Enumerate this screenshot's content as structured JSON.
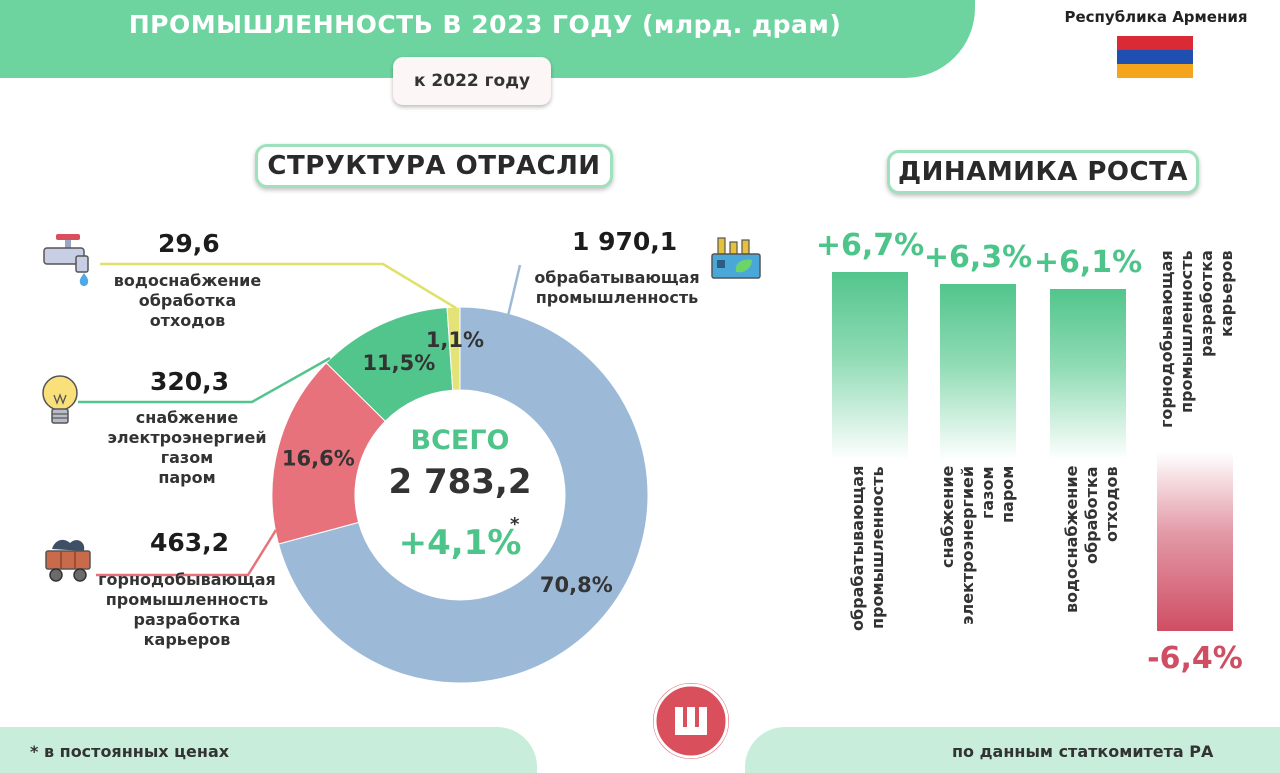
{
  "header": {
    "title": "ПРОМЫШЛЕННОСТЬ В 2023 ГОДУ (млрд. драм)",
    "subtitle": "к 2022 году",
    "country": "Республика Армения",
    "flag_colors": [
      "#d92a35",
      "#1f4fb0",
      "#f4a51c"
    ]
  },
  "structure": {
    "heading": "СТРУКТУРА ОТРАСЛИ",
    "center_label": "ВСЕГО",
    "total": "2 783,2",
    "total_growth": "+4,1%",
    "growth_mark": "*",
    "items": [
      {
        "value": "29,6",
        "label_lines": [
          "водоснабжение",
          "обработка",
          "отходов"
        ],
        "icon": "water-tap-icon"
      },
      {
        "value": "320,3",
        "label_lines": [
          "снабжение",
          "электроэнергией",
          "газом",
          "паром"
        ],
        "icon": "light-bulb-icon"
      },
      {
        "value": "463,2",
        "label_lines": [
          "горнодобывающая",
          "промышленность",
          "разработка",
          "карьеров"
        ],
        "icon": "mine-cart-icon"
      },
      {
        "value": "1 970,1",
        "label_lines": [
          "обрабатывающая",
          "промышленность"
        ],
        "icon": "factory-icon"
      }
    ]
  },
  "growth": {
    "heading": "ДИНАМИКА РОСТА"
  },
  "chart_data": [
    {
      "type": "pie",
      "title": "СТРУКТУРА ОТРАСЛИ",
      "categories": [
        "обрабатывающая промышленность",
        "горнодобывающая промышленность разработка карьеров",
        "снабжение электроэнергией газом паром",
        "водоснабжение обработка отходов"
      ],
      "values": [
        70.8,
        16.6,
        11.5,
        1.1
      ],
      "labels": [
        "70,8%",
        "16,6%",
        "11,5%",
        "1,1%"
      ],
      "absolute_values": [
        "1 970,1",
        "463,2",
        "320,3",
        "29,6"
      ],
      "colors": [
        "#9cbad8",
        "#e8727c",
        "#52c58c",
        "#e3e378"
      ]
    },
    {
      "type": "bar",
      "title": "ДИНАМИКА РОСТА",
      "categories": [
        [
          "обрабатывающая",
          "промышленность"
        ],
        [
          "снабжение",
          "электроэнергией",
          "газом",
          "паром"
        ],
        [
          "водоснабжение",
          "обработка",
          "отходов"
        ],
        [
          "горнодобывающая",
          "промышленность",
          "разработка",
          "карьеров"
        ]
      ],
      "values": [
        6.7,
        6.3,
        6.1,
        -6.4
      ],
      "labels": [
        "+6,7%",
        "+6,3%",
        "+6,1%",
        "-6,4%"
      ],
      "colors": {
        "positive": "#52c58c",
        "negative": "#cf4e64"
      }
    }
  ],
  "footer": {
    "note": "* в постоянных ценах",
    "source": "по данным статкомитета РА"
  }
}
